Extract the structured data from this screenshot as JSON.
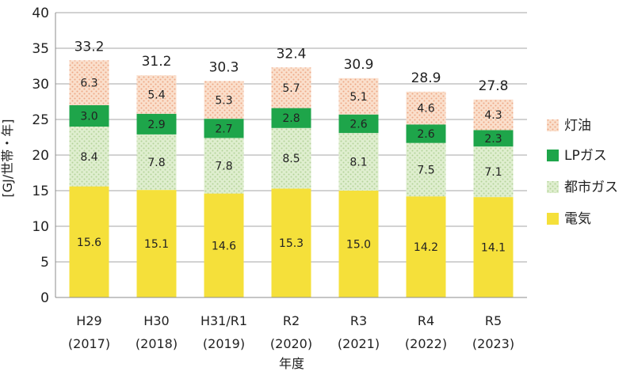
{
  "chart_data": {
    "type": "bar",
    "stacked": true,
    "categories": [
      "H29",
      "H30",
      "H31/R1",
      "R2",
      "R3",
      "R4",
      "R5"
    ],
    "category_years": [
      "(2017)",
      "(2018)",
      "(2019)",
      "(2020)",
      "(2021)",
      "(2022)",
      "(2023)"
    ],
    "series": [
      {
        "name": "電気",
        "values": [
          15.6,
          15.1,
          14.6,
          15.3,
          15.0,
          14.2,
          14.1
        ],
        "color": "#f5e03a",
        "pattern": "solid"
      },
      {
        "name": "都市ガス",
        "values": [
          8.4,
          7.8,
          7.8,
          8.5,
          8.1,
          7.5,
          7.1
        ],
        "color": "#d3e7c0",
        "pattern": "dots"
      },
      {
        "name": "LPガス",
        "values": [
          3.0,
          2.9,
          2.7,
          2.8,
          2.6,
          2.6,
          2.3
        ],
        "color": "#1ea54a",
        "pattern": "solid"
      },
      {
        "name": "灯油",
        "values": [
          6.3,
          5.4,
          5.3,
          5.7,
          5.1,
          4.6,
          4.3
        ],
        "color": "#f6cdb2",
        "pattern": "dots"
      }
    ],
    "segment_labels": [
      [
        "15.6",
        "15.1",
        "14.6",
        "15.3",
        "15.0",
        "14.2",
        "14.1"
      ],
      [
        "8.4",
        "7.8",
        "7.8",
        "8.5",
        "8.1",
        "7.5",
        "7.1"
      ],
      [
        "3.0",
        "2.9",
        "2.7",
        "2.8",
        "2.6",
        "2.6",
        "2.3"
      ],
      [
        "6.3",
        "5.4",
        "5.3",
        "5.7",
        "5.1",
        "4.6",
        "4.3"
      ]
    ],
    "totals": [
      "33.2",
      "31.2",
      "30.3",
      "32.4",
      "30.9",
      "28.9",
      "27.8"
    ],
    "xlabel": "年度",
    "ylabel": "[GJ/世帯・年]",
    "ylim": [
      0,
      40
    ],
    "yticks": [
      0,
      5,
      10,
      15,
      20,
      25,
      30,
      35,
      40
    ],
    "grid": true,
    "legend_position": "right",
    "legend_order": [
      "灯油",
      "LPガス",
      "都市ガス",
      "電気"
    ]
  }
}
